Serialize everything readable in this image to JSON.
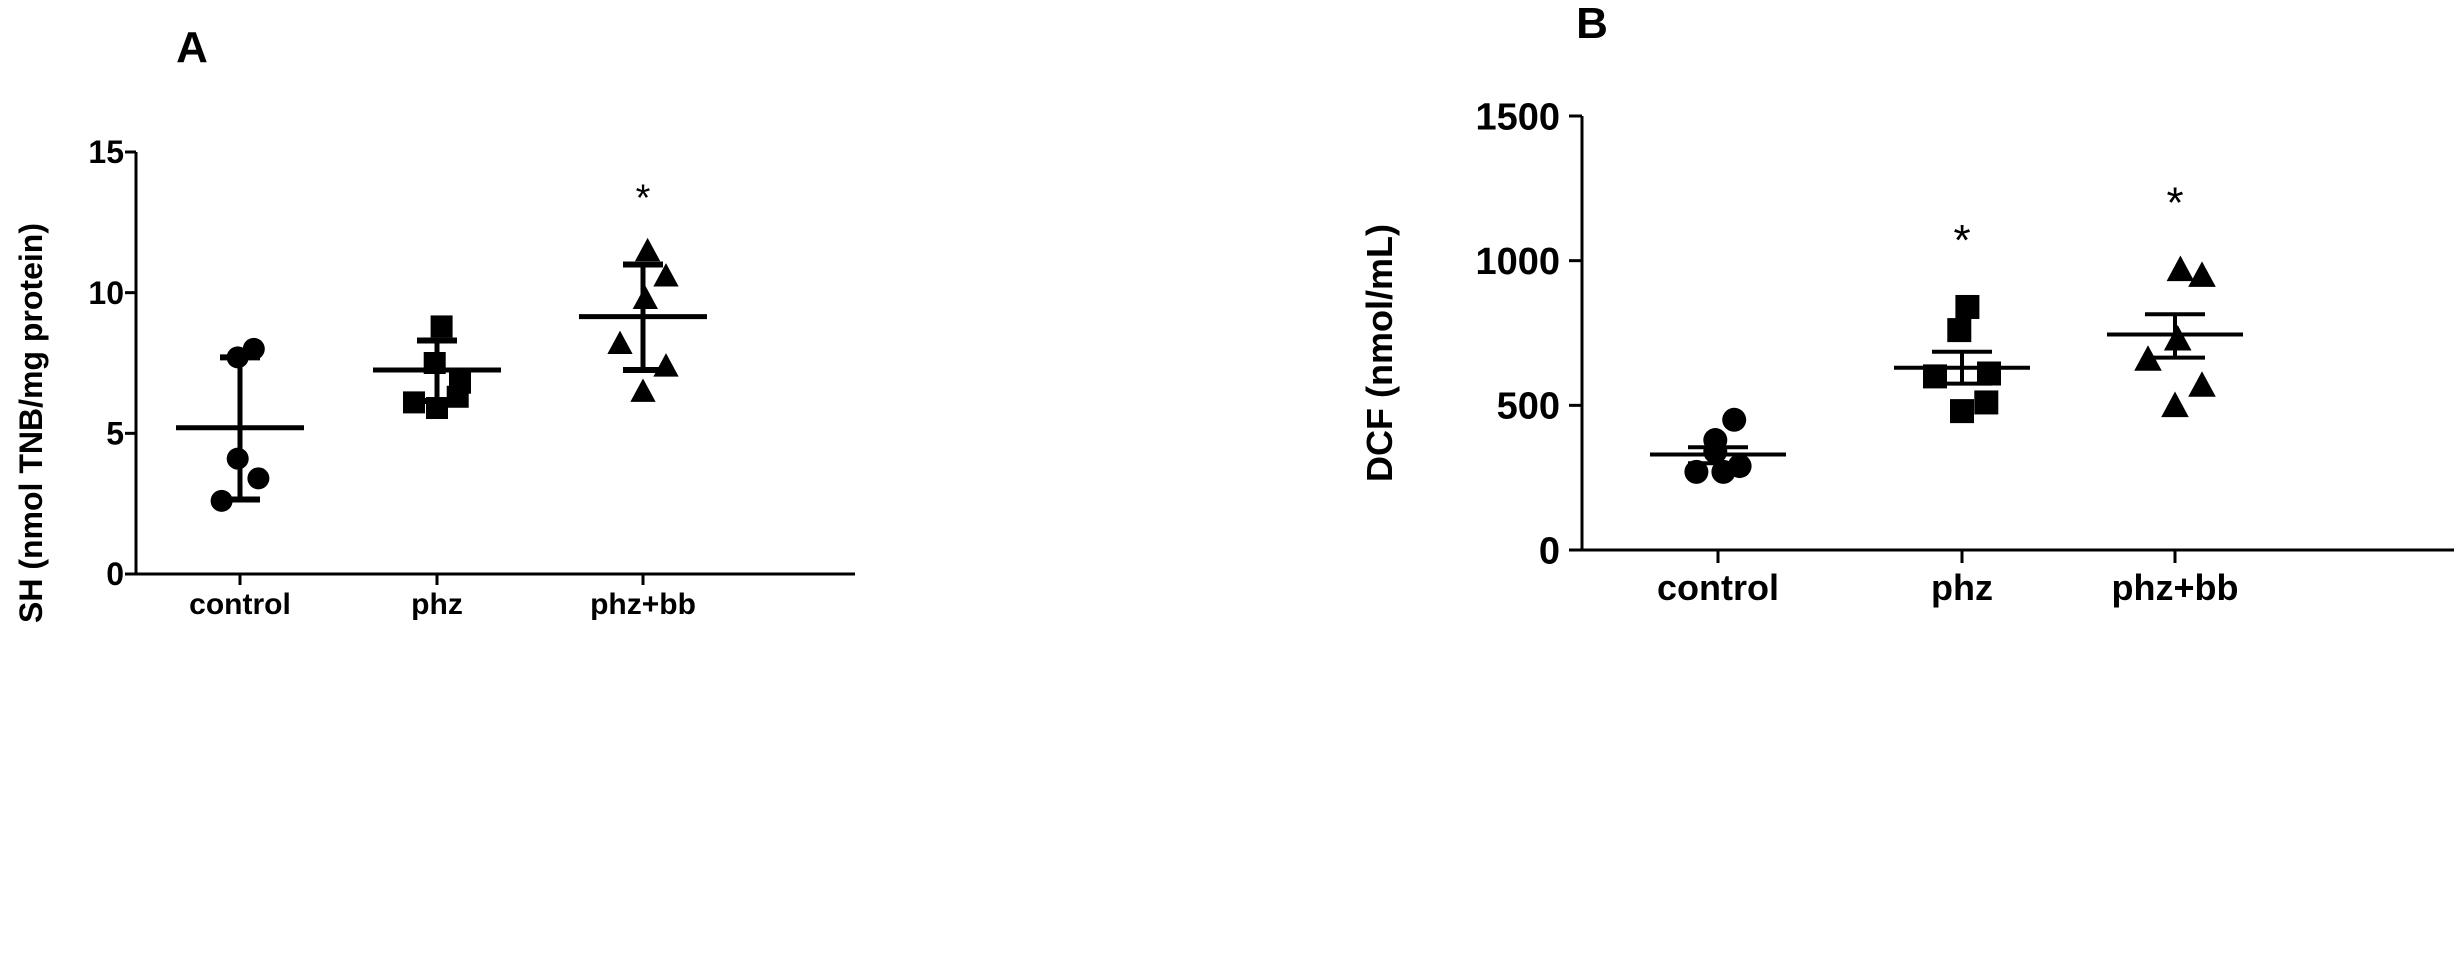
{
  "chart_data": [
    {
      "panel": "A",
      "type": "scatter",
      "ylabel": "SH (nmol TNB/mg protein)",
      "xlabel": "",
      "ylim": [
        0,
        15
      ],
      "yticks": [
        "0",
        "5",
        "10",
        "15"
      ],
      "categories": [
        "control",
        "phz",
        "phz+bb"
      ],
      "error_type": "mean with SD",
      "series": [
        {
          "category": "control",
          "marker": "circle",
          "points": [
            8.0,
            7.7,
            4.1,
            3.4,
            2.6
          ],
          "mean": 5.2,
          "upper": 7.7,
          "lower": 2.65,
          "significance": ""
        },
        {
          "category": "phz",
          "marker": "square",
          "points": [
            8.8,
            7.5,
            6.8,
            6.1,
            6.3,
            5.9
          ],
          "mean": 7.25,
          "upper": 8.3,
          "lower": 6.15,
          "significance": ""
        },
        {
          "category": "phz+bb",
          "marker": "triangle",
          "points": [
            11.5,
            10.6,
            9.8,
            8.2,
            7.4,
            6.5
          ],
          "mean": 9.15,
          "upper": 11.0,
          "lower": 7.25,
          "significance": "*"
        }
      ]
    },
    {
      "panel": "B",
      "type": "scatter",
      "ylabel": "DCF (nmol/mL)",
      "xlabel": "",
      "ylim": [
        0,
        1500
      ],
      "yticks": [
        "0",
        "500",
        "1000",
        "1500"
      ],
      "categories": [
        "control",
        "phz",
        "phz+bb"
      ],
      "error_type": "mean with SEM",
      "series": [
        {
          "category": "control",
          "marker": "circle",
          "points": [
            450,
            380,
            340,
            290,
            270,
            270
          ],
          "mean": 330,
          "upper": 355,
          "lower": 300,
          "significance": ""
        },
        {
          "category": "phz",
          "marker": "square",
          "points": [
            840,
            760,
            610,
            600,
            510,
            480
          ],
          "mean": 630,
          "upper": 685,
          "lower": 575,
          "significance": "*"
        },
        {
          "category": "phz+bb",
          "marker": "triangle",
          "points": [
            970,
            950,
            730,
            660,
            570,
            500
          ],
          "mean": 745,
          "upper": 815,
          "lower": 665,
          "significance": "*"
        }
      ]
    }
  ]
}
